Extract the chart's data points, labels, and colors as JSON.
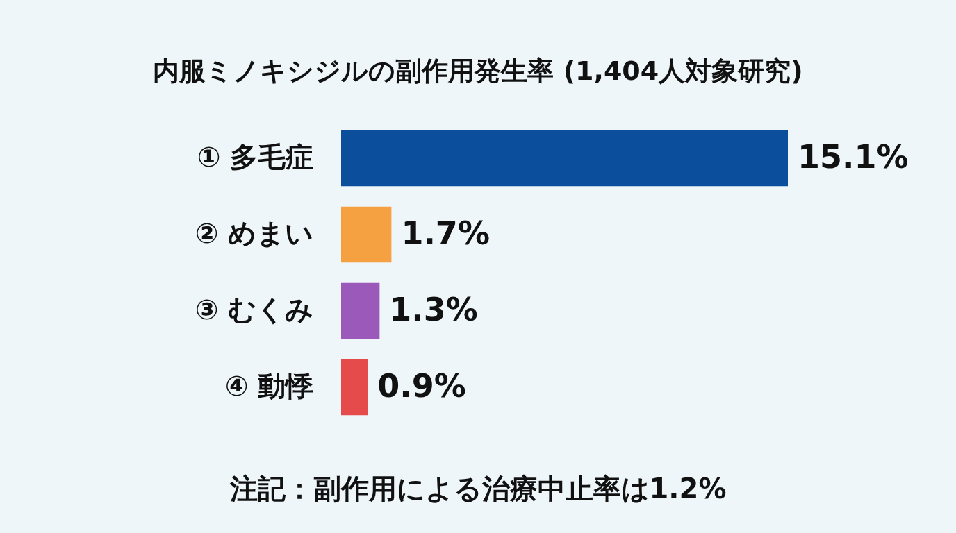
{
  "chart_data": {
    "type": "bar",
    "orientation": "horizontal",
    "title": "内服ミノキシジルの副作用発生率 (1,404人対象研究)",
    "categories": [
      "① 多毛症",
      "② めまい",
      "③ むくみ",
      "④ 動悸"
    ],
    "values": [
      15.1,
      1.7,
      1.3,
      0.9
    ],
    "colors": [
      "#0b4f9c",
      "#f5a142",
      "#9b59b9",
      "#e54b4b"
    ],
    "value_labels": [
      "15.1%",
      "1.7%",
      "1.3%",
      "0.9%"
    ],
    "annotations": [
      "注記：副作用による治療中止率は1.2%"
    ],
    "tick_labels": "y"
  }
}
